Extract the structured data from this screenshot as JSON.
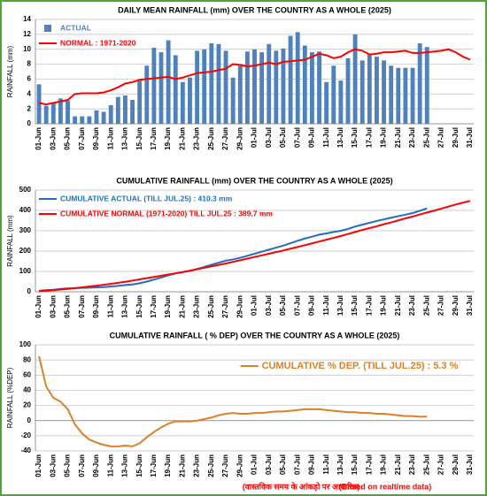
{
  "chart_data": [
    {
      "type": "bar",
      "title": "DAILY MEAN RAINFALL (mm) OVER THE COUNTRY AS A WHOLE  (2025)",
      "ylabel": "RAINFALL  (mm)",
      "categories": [
        "01-Jun",
        null,
        "03-Jun",
        null,
        "05-Jun",
        null,
        "07-Jun",
        null,
        "09-Jun",
        null,
        "11-Jun",
        null,
        "13-Jun",
        null,
        "15-Jun",
        null,
        "17-Jun",
        null,
        "19-Jun",
        null,
        "21-Jun",
        null,
        "23-Jun",
        null,
        "25-Jun",
        null,
        "27-Jun",
        null,
        "29-Jun",
        null,
        "01-Jul",
        null,
        "03-Jul",
        null,
        "05-Jul",
        null,
        "07-Jul",
        null,
        "09-Jul",
        null,
        "11-Jul",
        null,
        "13-Jul",
        null,
        "15-Jul",
        null,
        "17-Jul",
        null,
        "19-Jul",
        null,
        "21-Jul",
        null,
        "23-Jul",
        null,
        "25-Jul",
        null,
        "27-Jul",
        null,
        "29-Jul",
        null,
        "31-Jul"
      ],
      "series": [
        {
          "name": "ACTUAL",
          "type": "bar",
          "color": "#4f81bd",
          "values": [
            5.3,
            2.4,
            2.8,
            3.4,
            3.1,
            1.0,
            1.0,
            1.0,
            1.8,
            1.6,
            2.5,
            3.6,
            3.8,
            3.2,
            5.8,
            7.8,
            10.2,
            9.6,
            11.2,
            9.2,
            5.6,
            6.2,
            9.8,
            10.0,
            10.8,
            10.7,
            9.8,
            6.2,
            7.8,
            9.7,
            10.0,
            9.6,
            10.7,
            9.8,
            10.1,
            11.8,
            12.3,
            10.5,
            9.6,
            9.7,
            5.6,
            7.8,
            5.8,
            8.8,
            12.0,
            8.5,
            9.3,
            9.0,
            8.5,
            7.8,
            7.5,
            7.5,
            7.5,
            10.8,
            10.3,
            null,
            null,
            null,
            null,
            null,
            null
          ]
        },
        {
          "name": "NORMAL : 1971-2020",
          "type": "line",
          "color": "#ff0000",
          "values": [
            2.8,
            2.6,
            2.8,
            3.0,
            3.2,
            4.0,
            4.1,
            4.1,
            4.1,
            4.2,
            4.5,
            4.9,
            5.4,
            5.6,
            5.9,
            6.0,
            6.1,
            6.2,
            6.3,
            6.0,
            6.2,
            6.5,
            6.8,
            6.9,
            7.0,
            7.2,
            7.4,
            8.0,
            7.9,
            7.7,
            7.8,
            8.0,
            8.2,
            8.0,
            8.3,
            8.4,
            8.5,
            8.6,
            9.0,
            9.4,
            9.2,
            8.8,
            9.0,
            9.6,
            10.0,
            9.8,
            9.3,
            9.4,
            9.6,
            9.6,
            9.7,
            9.8,
            9.5,
            9.5,
            9.6,
            9.7,
            9.8,
            10.0,
            9.6,
            9.0,
            8.6
          ]
        }
      ],
      "ylim": [
        0,
        14
      ],
      "yticks": [
        0,
        2,
        4,
        6,
        8,
        10,
        12,
        14
      ],
      "grid": true,
      "legend": "upper left"
    },
    {
      "type": "line",
      "title": "CUMULATIVE RAINFALL (mm) OVER THE COUNTRY AS A WHOLE  (2025)",
      "ylabel": "RAINFALL  (mm)",
      "categories": [
        "01-Jun",
        null,
        "03-Jun",
        null,
        "05-Jun",
        null,
        "07-Jun",
        null,
        "09-Jun",
        null,
        "11-Jun",
        null,
        "13-Jun",
        null,
        "15-Jun",
        null,
        "17-Jun",
        null,
        "19-Jun",
        null,
        "21-Jun",
        null,
        "23-Jun",
        null,
        "25-Jun",
        null,
        "27-Jun",
        null,
        "29-Jun",
        null,
        "01-Jul",
        null,
        "03-Jul",
        null,
        "05-Jul",
        null,
        "07-Jul",
        null,
        "09-Jul",
        null,
        "11-Jul",
        null,
        "13-Jul",
        null,
        "15-Jul",
        null,
        "17-Jul",
        null,
        "19-Jul",
        null,
        "21-Jul",
        null,
        "23-Jul",
        null,
        "25-Jul",
        null,
        "27-Jul",
        null,
        "29-Jul",
        null,
        "31-Jul"
      ],
      "series": [
        {
          "name": "CUMULATIVE ACTUAL (TILL JUL.25) : 410.3 mm",
          "color": "#1f6fbf",
          "values": [
            5,
            8,
            10,
            14,
            17,
            18,
            19,
            20,
            22,
            23,
            26,
            29,
            33,
            36,
            42,
            50,
            60,
            70,
            81,
            90,
            96,
            102,
            112,
            122,
            133,
            143,
            153,
            159,
            167,
            177,
            187,
            197,
            207,
            217,
            227,
            239,
            251,
            262,
            271,
            281,
            287,
            294,
            300,
            309,
            321,
            330,
            339,
            348,
            356,
            364,
            372,
            379,
            387,
            398,
            410.3,
            null,
            null,
            null,
            null,
            null,
            null
          ]
        },
        {
          "name": "CUMULATIVE NORMAL (1971-2020) TILL JUL.25 : 389.7 mm",
          "color": "#ff0000",
          "values": [
            3,
            5,
            8,
            11,
            14,
            18,
            22,
            26,
            30,
            34,
            39,
            44,
            49,
            55,
            61,
            67,
            73,
            79,
            85,
            91,
            97,
            104,
            111,
            118,
            125,
            132,
            139,
            147,
            155,
            163,
            171,
            179,
            187,
            195,
            203,
            212,
            220,
            229,
            238,
            247,
            256,
            265,
            274,
            284,
            294,
            304,
            313,
            322,
            332,
            341,
            351,
            361,
            370,
            380,
            389.7,
            399,
            409,
            419,
            429,
            438,
            447
          ]
        }
      ],
      "ylim": [
        0,
        500
      ],
      "yticks": [
        0,
        100,
        200,
        300,
        400,
        500
      ],
      "grid": true,
      "legend": "upper left"
    },
    {
      "type": "line",
      "title": "CUMULATIVE RAINFALL ( % DEP) OVER THE COUNTRY AS A WHOLE (2025)",
      "ylabel": "RAINFALL  (%DEP)",
      "categories": [
        "01-Jun",
        null,
        "03-Jun",
        null,
        "05-Jun",
        null,
        "07-Jun",
        null,
        "09-Jun",
        null,
        "11-Jun",
        null,
        "13-Jun",
        null,
        "15-Jun",
        null,
        "17-Jun",
        null,
        "19-Jun",
        null,
        "21-Jun",
        null,
        "23-Jun",
        null,
        "25-Jun",
        null,
        "27-Jun",
        null,
        "29-Jun",
        null,
        "01-Jul",
        null,
        "03-Jul",
        null,
        "05-Jul",
        null,
        "07-Jul",
        null,
        "09-Jul",
        null,
        "11-Jul",
        null,
        "13-Jul",
        null,
        "15-Jul",
        null,
        "17-Jul",
        null,
        "19-Jul",
        null,
        "21-Jul",
        null,
        "23-Jul",
        null,
        "25-Jul",
        null,
        "27-Jul",
        null,
        "29-Jul",
        null,
        "31-Jul"
      ],
      "series": [
        {
          "name": "CUMULATIVE % DEP.  (TILL  JUL.25) : 5.3 %",
          "color": "#d9822b",
          "values": [
            85,
            45,
            30,
            25,
            15,
            -5,
            -17,
            -25,
            -29,
            -32,
            -34,
            -34,
            -33,
            -34,
            -30,
            -22,
            -15,
            -9,
            -4,
            -1,
            -1,
            -1,
            0,
            2,
            4,
            7,
            9,
            10,
            9,
            9,
            10,
            10,
            11,
            12,
            12,
            13,
            14,
            15,
            15,
            15,
            14,
            13,
            12,
            11,
            11,
            10,
            10,
            9,
            9,
            8,
            7,
            6,
            6,
            5,
            5.3,
            null,
            null,
            null,
            null,
            null,
            null
          ]
        }
      ],
      "ylim": [
        -40,
        100
      ],
      "yticks": [
        -40,
        -20,
        0,
        20,
        40,
        60,
        80,
        100
      ],
      "grid": true,
      "legend": "center right"
    }
  ],
  "footer": {
    "hindi": "(वास्तविक समय के आंकड़ो पर आधारित)",
    "english": "(Based on realtime data)"
  }
}
